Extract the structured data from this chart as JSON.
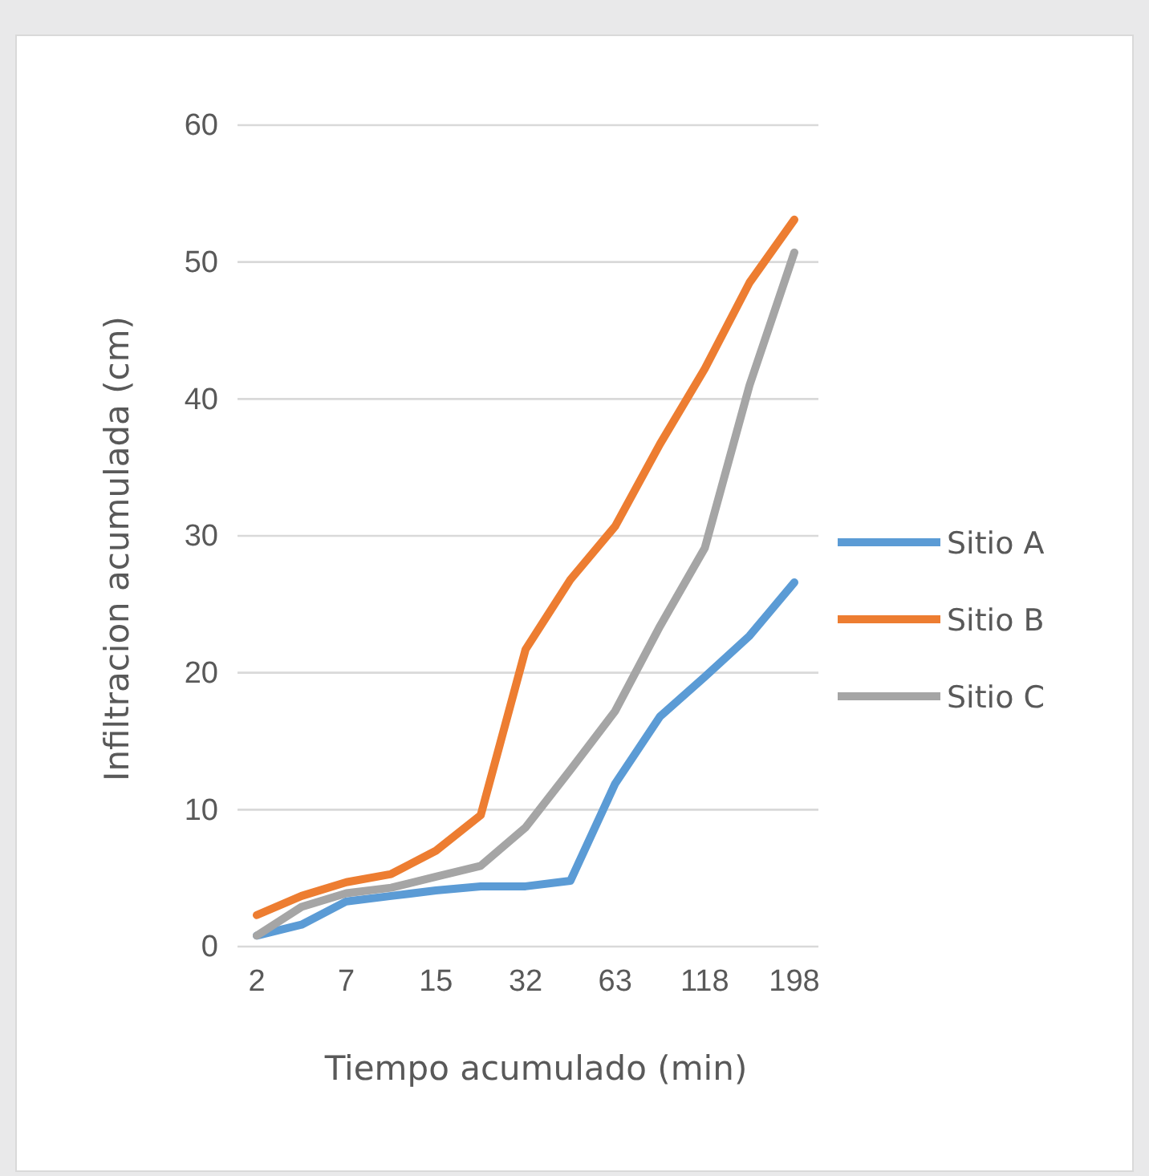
{
  "chart_data": {
    "type": "line",
    "xlabel": "Tiempo acumulado (min)",
    "ylabel": "Infiltracion acumulada (cm)",
    "categories": [
      "2",
      null,
      "7",
      null,
      "15",
      null,
      "32",
      null,
      "63",
      null,
      "118",
      null,
      "198"
    ],
    "series": [
      {
        "name": "Sitio A",
        "color": "#5b9bd5",
        "values": [
          0.8,
          1.6,
          3.3,
          3.7,
          4.1,
          4.4,
          4.4,
          4.8,
          11.9,
          16.8,
          19.7,
          22.7,
          26.6
        ]
      },
      {
        "name": "Sitio B",
        "color": "#ed7d31",
        "values": [
          2.3,
          3.7,
          4.7,
          5.3,
          7.0,
          9.6,
          21.7,
          26.8,
          30.7,
          36.7,
          42.2,
          48.5,
          53.1
        ]
      },
      {
        "name": "Sitio C",
        "color": "#a5a5a5",
        "values": [
          0.8,
          2.9,
          3.9,
          4.3,
          5.1,
          5.9,
          8.7,
          12.9,
          17.2,
          23.4,
          29.1,
          41.0,
          50.7
        ]
      }
    ],
    "ylim": [
      0,
      60
    ],
    "yticks": [
      0,
      10,
      20,
      30,
      40,
      50,
      60
    ],
    "grid": "y",
    "legend": "right",
    "line_style": "solid",
    "marker": "none"
  }
}
